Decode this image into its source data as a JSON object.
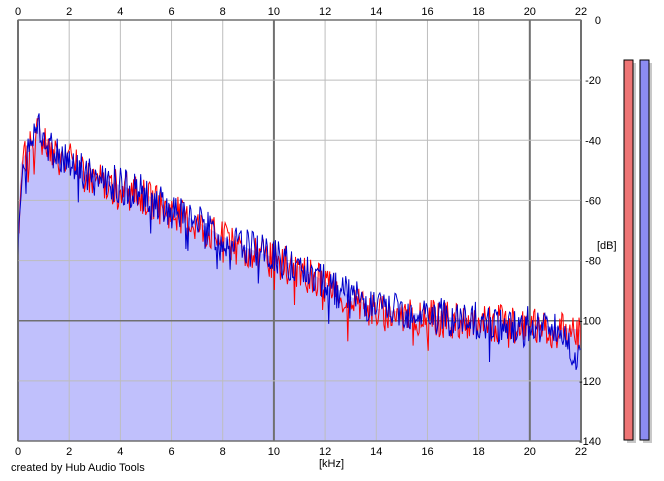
{
  "footer": {
    "credit": "created by Hub Audio Tools"
  },
  "chart_data": {
    "type": "area",
    "xlabel": "[kHz]",
    "ylabel": "[dB]",
    "xlim": [
      0,
      22
    ],
    "ylim": [
      -140,
      0
    ],
    "x_ticks": [
      0,
      2,
      4,
      6,
      8,
      10,
      12,
      14,
      16,
      18,
      20,
      22
    ],
    "y_ticks": [
      0,
      -20,
      -40,
      -60,
      -80,
      -100,
      -120,
      -140
    ],
    "grid": true,
    "colors": {
      "fill": "#c0c0fc",
      "grid": "#bdbdbd",
      "major_grid": "#707070",
      "left_channel": "#ff0000",
      "right_channel": "#0000cc",
      "meter_left": "#ee7575",
      "meter_right": "#8c8cf2"
    },
    "envelope": {
      "x": [
        0,
        0.1,
        0.3,
        0.5,
        0.7,
        0.8,
        1.0,
        1.5,
        2.0,
        2.5,
        3,
        4,
        5,
        6,
        7,
        8,
        9,
        10,
        11,
        12,
        13,
        14,
        15,
        16,
        17,
        18,
        19,
        20,
        21,
        22
      ],
      "y": [
        -70,
        -48,
        -44,
        -43,
        -38,
        -34,
        -40,
        -44,
        -46,
        -50,
        -52,
        -55,
        -58,
        -63,
        -67,
        -72,
        -76,
        -79,
        -82,
        -87,
        -92,
        -96,
        -97,
        -98,
        -99,
        -100,
        -100,
        -101,
        -102,
        -103
      ]
    },
    "series": [
      {
        "values": [
          [
            0,
            -70
          ],
          [
            0.2,
            -46
          ],
          [
            0.4,
            -44
          ],
          [
            0.6,
            -40
          ],
          [
            0.8,
            -34
          ],
          [
            1.0,
            -41
          ],
          [
            1.5,
            -45
          ],
          [
            2.0,
            -47
          ],
          [
            2.5,
            -51
          ],
          [
            3,
            -53
          ],
          [
            4,
            -56
          ],
          [
            5,
            -59
          ],
          [
            6,
            -64
          ],
          [
            7,
            -68
          ],
          [
            8,
            -73
          ],
          [
            9,
            -77
          ],
          [
            10,
            -80
          ],
          [
            11,
            -83
          ],
          [
            12,
            -88
          ],
          [
            13,
            -93
          ],
          [
            14,
            -97
          ],
          [
            15,
            -98
          ],
          [
            16,
            -99
          ],
          [
            17,
            -100
          ],
          [
            18,
            -101
          ],
          [
            19,
            -101
          ],
          [
            20,
            -102
          ],
          [
            21,
            -103
          ],
          [
            22,
            -104
          ]
        ]
      },
      {
        "values": [
          [
            0,
            -73
          ],
          [
            0.2,
            -47
          ],
          [
            0.4,
            -45
          ],
          [
            0.6,
            -39
          ],
          [
            0.8,
            -32
          ],
          [
            1.0,
            -40
          ],
          [
            1.5,
            -44
          ],
          [
            2.0,
            -46
          ],
          [
            2.5,
            -50
          ],
          [
            3,
            -52
          ],
          [
            4,
            -55
          ],
          [
            5,
            -58
          ],
          [
            6,
            -63
          ],
          [
            7,
            -67
          ],
          [
            8,
            -72
          ],
          [
            9,
            -76
          ],
          [
            10,
            -79
          ],
          [
            11,
            -82
          ],
          [
            12,
            -87
          ],
          [
            13,
            -92
          ],
          [
            14,
            -96
          ],
          [
            15,
            -97
          ],
          [
            16,
            -98
          ],
          [
            17,
            -99
          ],
          [
            18,
            -100
          ],
          [
            19,
            -101
          ],
          [
            20,
            -101
          ],
          [
            21,
            -102
          ],
          [
            22,
            -113
          ]
        ]
      }
    ],
    "meters": [
      {
        "channel": "left",
        "level_db": -140
      },
      {
        "channel": "right",
        "level_db": -140
      }
    ]
  }
}
